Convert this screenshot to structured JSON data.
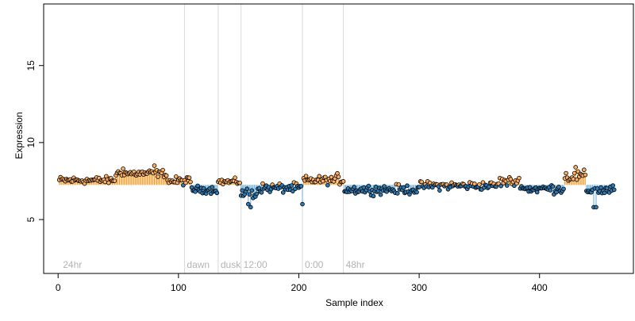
{
  "chart_data": {
    "type": "scatter",
    "title": "",
    "xlabel": "Sample index",
    "ylabel": "Expression",
    "xlim": [
      -12,
      478
    ],
    "ylim": [
      1.5,
      19.0
    ],
    "x_ticks": [
      0,
      100,
      200,
      300,
      400
    ],
    "y_ticks": [
      5,
      10,
      15
    ],
    "baseline": 7.25,
    "grid": false,
    "legend": "none",
    "colors": {
      "above_fill": "#fdae61",
      "above_stem": "#f0a030",
      "below_fill": "#2c7bb6",
      "below_stem": "#6baed6",
      "point_stroke": "#000000",
      "marker_line": "#d9d9d9",
      "annotation_text": "#b3b3b3"
    },
    "markers": [
      {
        "x": 2,
        "label": "24hr"
      },
      {
        "x": 105,
        "label": "dawn"
      },
      {
        "x": 133,
        "label": "dusk"
      },
      {
        "x": 152,
        "label": "12:00"
      },
      {
        "x": 203,
        "label": "0:00"
      },
      {
        "x": 237,
        "label": "48hr"
      }
    ],
    "segments": [
      {
        "x_start": 1,
        "x_end": 47,
        "level": 7.55,
        "amp": 0.35
      },
      {
        "x_start": 48,
        "x_end": 90,
        "level": 8.0,
        "amp": 0.35
      },
      {
        "x_start": 91,
        "x_end": 110,
        "level": 7.5,
        "amp": 0.4
      },
      {
        "x_start": 111,
        "x_end": 132,
        "level": 6.95,
        "amp": 0.35
      },
      {
        "x_start": 133,
        "x_end": 151,
        "level": 7.45,
        "amp": 0.3
      },
      {
        "x_start": 152,
        "x_end": 165,
        "level": 6.7,
        "amp": 0.5
      },
      {
        "x_start": 166,
        "x_end": 203,
        "level": 7.05,
        "amp": 0.45
      },
      {
        "x_start": 204,
        "x_end": 237,
        "level": 7.55,
        "amp": 0.4
      },
      {
        "x_start": 238,
        "x_end": 300,
        "level": 6.95,
        "amp": 0.45
      },
      {
        "x_start": 301,
        "x_end": 365,
        "level": 7.2,
        "amp": 0.4
      },
      {
        "x_start": 366,
        "x_end": 385,
        "level": 7.45,
        "amp": 0.5
      },
      {
        "x_start": 386,
        "x_end": 420,
        "level": 7.0,
        "amp": 0.45
      },
      {
        "x_start": 421,
        "x_end": 438,
        "level": 7.8,
        "amp": 0.55
      },
      {
        "x_start": 439,
        "x_end": 462,
        "level": 6.9,
        "amp": 0.5
      }
    ],
    "notable_points": [
      {
        "x": 158,
        "y": 6.0
      },
      {
        "x": 160,
        "y": 5.8
      },
      {
        "x": 203,
        "y": 6.0
      },
      {
        "x": 162,
        "y": 6.4
      },
      {
        "x": 232,
        "y": 8.0
      },
      {
        "x": 430,
        "y": 8.4
      },
      {
        "x": 445,
        "y": 5.8
      },
      {
        "x": 447,
        "y": 5.8
      },
      {
        "x": 54,
        "y": 8.3
      },
      {
        "x": 80,
        "y": 8.5
      }
    ]
  }
}
